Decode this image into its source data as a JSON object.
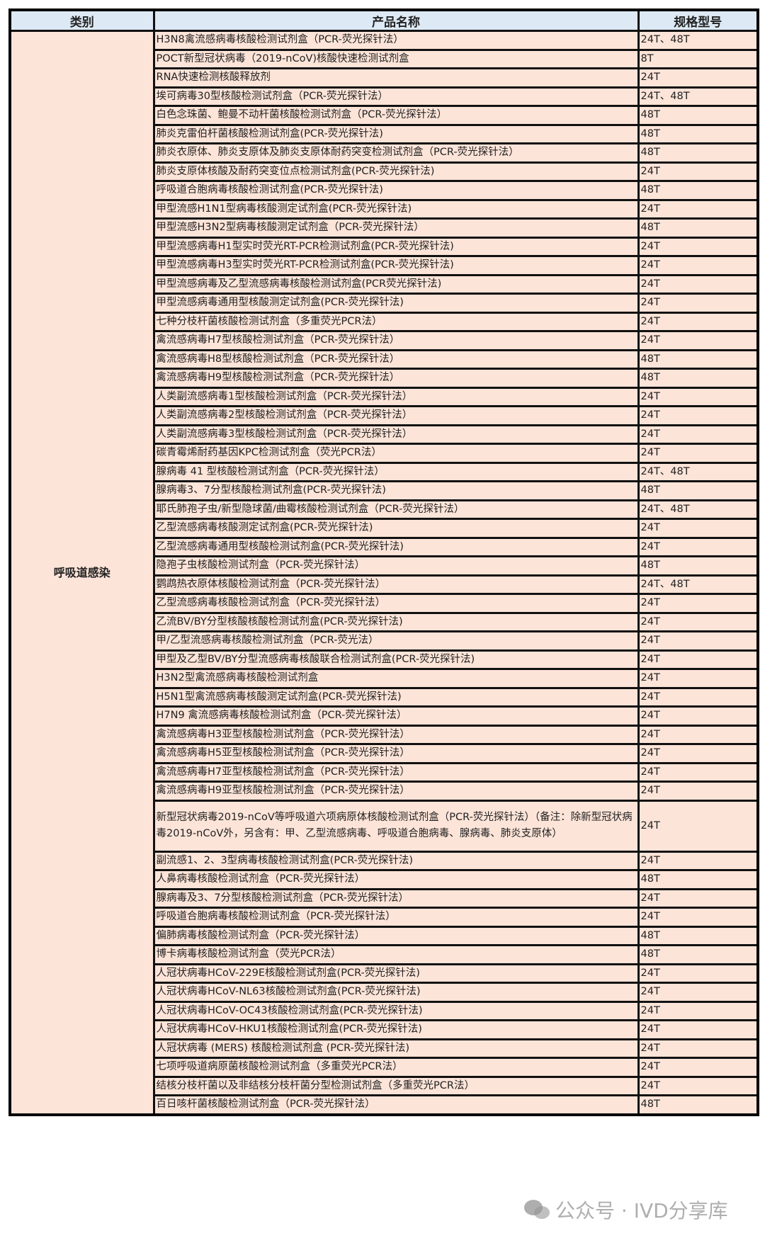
{
  "table": {
    "headers": [
      "类别",
      "产品名称",
      "规格型号"
    ],
    "category": "呼吸道感染",
    "rows": [
      [
        "H3N8禽流感病毒核酸检测试剂盒（PCR-荧光探针法）",
        "24T、48T"
      ],
      [
        "POCT新型冠状病毒（2019-nCoV)核酸快速检测试剂盒",
        "8T"
      ],
      [
        "RNA快速检测核酸释放剂",
        "24T"
      ],
      [
        "埃可病毒30型核酸检测试剂盒（PCR-荧光探针法）",
        "24T、48T"
      ],
      [
        "白色念珠菌、鲍曼不动杆菌核酸检测试剂盒（PCR-荧光探针法）",
        "48T"
      ],
      [
        "肺炎克雷伯杆菌核酸检测试剂盒(PCR-荧光探针法)",
        "48T"
      ],
      [
        "肺炎衣原体、肺炎支原体及肺炎支原体耐药突变检测试剂盒（PCR-荧光探针法）",
        "48T"
      ],
      [
        "肺炎支原体核酸及耐药突变位点检测试剂盒(PCR-荧光探针法)",
        "24T"
      ],
      [
        "呼吸道合胞病毒核酸检测试剂盒(PCR-荧光探针法)",
        "48T"
      ],
      [
        "甲型流感H1N1型病毒核酸测定试剂盒(PCR-荧光探针法)",
        "24T"
      ],
      [
        "甲型流感H3N2型病毒核酸测定试剂盒（PCR-荧光探针法）",
        "48T"
      ],
      [
        "甲型流感病毒H1型实时荧光RT-PCR检测试剂盒(PCR-荧光探针法)",
        "24T"
      ],
      [
        "甲型流感病毒H3型实时荧光RT-PCR检测试剂盒(PCR-荧光探针法)",
        "24T"
      ],
      [
        "甲型流感病毒及乙型流感病毒核酸检测试剂盒(PCR荧光探针法)",
        "24T"
      ],
      [
        "甲型流感病毒通用型核酸测定试剂盒(PCR-荧光探针法)",
        "24T"
      ],
      [
        "七种分枝杆菌核酸检测试剂盒（多重荧光PCR法）",
        "24T"
      ],
      [
        "禽流感病毒H7型核酸检测试剂盒（PCR-荧光探针法）",
        "24T"
      ],
      [
        "禽流感病毒H8型核酸检测试剂盒（PCR-荧光探针法）",
        "48T"
      ],
      [
        "禽流感病毒H9型核酸检测试剂盒（PCR-荧光探针法）",
        "48T"
      ],
      [
        "人类副流感病毒1型核酸检测试剂盒（PCR-荧光探针法）",
        "24T"
      ],
      [
        "人类副流感病毒2型核酸检测试剂盒（PCR-荧光探针法）",
        "24T"
      ],
      [
        "人类副流感病毒3型核酸检测试剂盒（PCR-荧光探针法）",
        "24T"
      ],
      [
        "碳青霉烯耐药基因KPC检测试剂盒（荧光PCR法）",
        "24T"
      ],
      [
        "腺病毒 41 型核酸检测试剂盒（PCR-荧光探针法）",
        "24T、48T"
      ],
      [
        "腺病毒3、7分型核酸检测试剂盒(PCR-荧光探针法)",
        "48T"
      ],
      [
        "耶氏肺孢子虫/新型隐球菌/曲霉核酸检测试剂盒（PCR-荧光探针法）",
        "24T、48T"
      ],
      [
        "乙型流感病毒核酸测定试剂盒(PCR-荧光探针法)",
        "24T"
      ],
      [
        "乙型流感病毒通用型核酸检测试剂盒(PCR-荧光探针法)",
        "24T"
      ],
      [
        "隐孢子虫核酸检测试剂盒（PCR-荧光探针法）",
        "48T"
      ],
      [
        "鹦鹉热衣原体核酸检测试剂盒（PCR-荧光探针法）",
        "24T、48T"
      ],
      [
        "乙型流感病毒核酸检测试剂盒（PCR-荧光探针法）",
        "24T"
      ],
      [
        "乙流BV/BY分型核酸核酸检测试剂盒(PCR-荧光探针法)",
        "24T"
      ],
      [
        "甲/乙型流感病毒核酸检测试剂盒（PCR-荧光法）",
        "24T"
      ],
      [
        "甲型及乙型BV/BY分型流感病毒核酸联合检测试剂盒(PCR-荧光探针法)",
        "24T"
      ],
      [
        "H3N2型禽流感病毒核酸检测试剂盒",
        "24T"
      ],
      [
        "H5N1型禽流感病毒核酸测定试剂盒(PCR-荧光探针法)",
        "24T"
      ],
      [
        "H7N9 禽流感病毒核酸检测试剂盒（PCR-荧光探针法）",
        "24T"
      ],
      [
        "禽流感病毒H3亚型核酸检测试剂盒（PCR-荧光探针法）",
        "24T"
      ],
      [
        "禽流感病毒H5亚型核酸检测试剂盒（PCR-荧光探针法）",
        "24T"
      ],
      [
        "禽流感病毒H7亚型核酸检测试剂盒（PCR-荧光探针法）",
        "24T"
      ],
      [
        "禽流感病毒H9亚型核酸检测试剂盒（PCR-荧光探针法）",
        "24T"
      ],
      [
        "新型冠状病毒2019-nCoV等呼吸道六项病原体核酸检测试剂盒（PCR-荧光探针法）（备注：除新型冠状病毒2019-nCoV外，另含有：甲、乙型流感病毒、呼吸道合胞病毒、腺病毒、肺炎支原体）",
        "24T"
      ],
      [
        "副流感1、2、3型病毒核酸检测试剂盒(PCR-荧光探针法)",
        "24T"
      ],
      [
        "人鼻病毒核酸检测试剂盒（PCR-荧光探针法）",
        "48T"
      ],
      [
        "腺病毒及3、7分型核酸检测试剂盒（PCR-荧光探针法）",
        "24T"
      ],
      [
        "呼吸道合胞病毒核酸检测试剂盒（PCR-荧光探针法）",
        "24T"
      ],
      [
        "偏肺病毒核酸检测试剂盒（PCR-荧光探针法）",
        "48T"
      ],
      [
        "博卡病毒核酸检测试剂盒（荧光PCR法）",
        "48T"
      ],
      [
        "人冠状病毒HCoV-229E核酸检测试剂盒(PCR-荧光探针法)",
        "24T"
      ],
      [
        "人冠状病毒HCoV-NL63核酸检测试剂盒(PCR-荧光探针法)",
        "24T"
      ],
      [
        "人冠状病毒HCoV-OC43核酸检测试剂盒(PCR-荧光探针法)",
        "24T"
      ],
      [
        "人冠状病毒HCoV-HKU1核酸检测试剂盒(PCR-荧光探针法)",
        "24T"
      ],
      [
        "人冠状病毒 (MERS) 核酸检测试剂盒 (PCR-荧光探针法)",
        "24T"
      ],
      [
        "七项呼吸道病原菌核酸检测试剂盒（多重荧光PCR法）",
        "24T"
      ],
      [
        "结核分枝杆菌以及非结核分枝杆菌分型检测试剂盒（多重荧光PCR法）",
        "24T"
      ],
      [
        "百日咳杆菌核酸检测试剂盒（PCR-荧光探针法）",
        "48T"
      ]
    ]
  },
  "watermark": {
    "text": "公众号 · IVD分享库",
    "icon": "wechat-icon"
  },
  "colors": {
    "header_bg": "#dde9f5",
    "body_bg": "#fde4d8",
    "border": "#111111"
  }
}
